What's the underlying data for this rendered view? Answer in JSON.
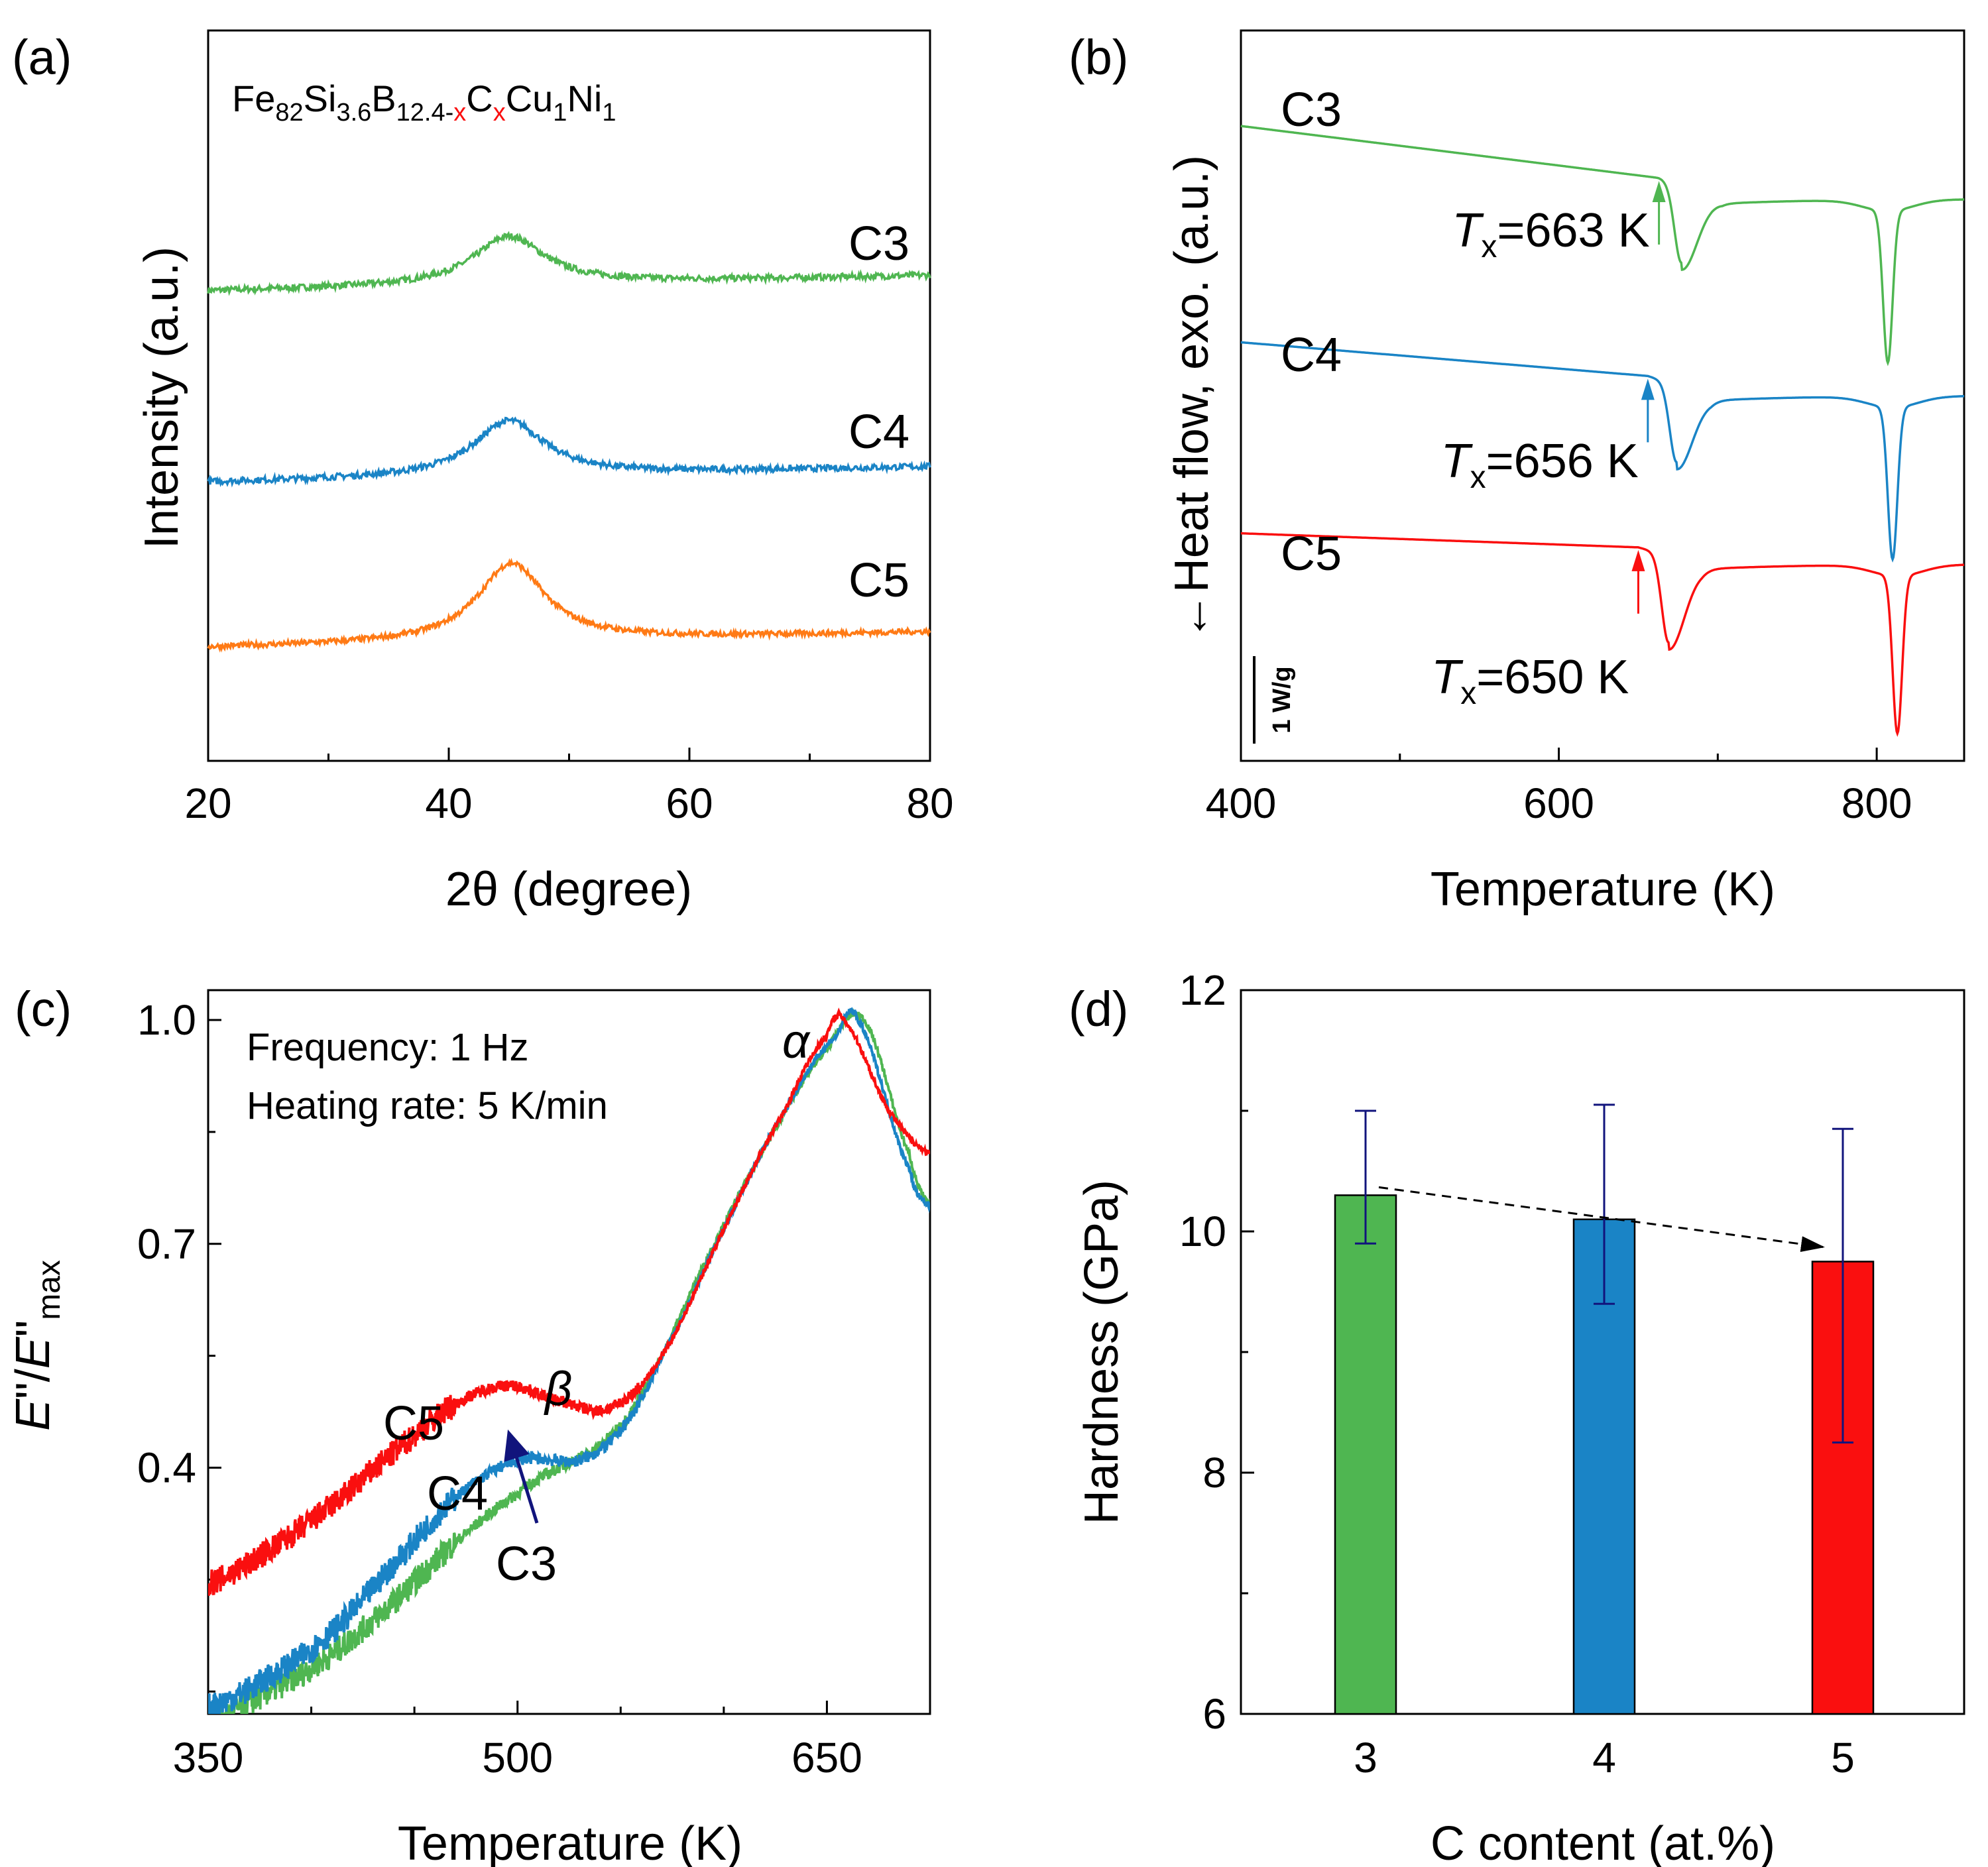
{
  "colors": {
    "C3": "#4fb651",
    "C4": "#1a84c6",
    "C5": "#fa0f0f",
    "orange": "#ff7a15",
    "navy": "#11147c",
    "black": "#000000"
  },
  "chart_data": [
    {
      "panel": "a",
      "panel_label": "(a)",
      "type": "line",
      "title_parts": {
        "fe": "Fe",
        "fe_sub": "82",
        "si": "Si",
        "si_sub": "3.6",
        "b": "B",
        "b_sub": "12.4-",
        "b_sub_x": "x",
        "c": "C",
        "c_sub": "x",
        "cu": "Cu",
        "cu_sub": "1",
        "ni": "Ni",
        "ni_sub": "1"
      },
      "xlabel": "2θ  (degree)",
      "ylabel": "Intensity (a.u.)",
      "xlim": [
        20,
        80
      ],
      "ylim": [
        0,
        4.2
      ],
      "xticks": [
        20,
        40,
        60,
        80
      ],
      "series": [
        {
          "name": "C3",
          "color_key": "C3",
          "offset": 2.7,
          "peak_height": 0.28,
          "peak_center": 45,
          "peak_width": 3.6,
          "baseline_slope": 0.0015,
          "noise": 0.018
        },
        {
          "name": "C4",
          "color_key": "C4",
          "offset": 1.6,
          "peak_height": 0.32,
          "peak_center": 45,
          "peak_width": 3.6,
          "baseline_slope": 0.0015,
          "noise": 0.018
        },
        {
          "name": "C5",
          "color_key": "orange",
          "offset": 0.65,
          "peak_height": 0.45,
          "peak_center": 45.2,
          "peak_width": 3.4,
          "baseline_slope": 0.0015,
          "noise": 0.016
        }
      ],
      "labels": [
        "C3",
        "C4",
        "C5"
      ]
    },
    {
      "panel": "b",
      "panel_label": "(b)",
      "type": "line",
      "xlabel": "Temperature (K)",
      "ylabel": "←Heat flow, exo. (a.u.)",
      "xlim": [
        400,
        855
      ],
      "ylim": [
        -0.6,
        4.6
      ],
      "xticks": [
        400,
        600,
        800
      ],
      "scale_bar_label": "1 W/g",
      "series": [
        {
          "name": "C3",
          "color_key": "C3",
          "start": 3.92,
          "pre_end": 3.55,
          "onset": 663,
          "peak1_T": 677,
          "peak1_depth": 0.55,
          "peak2_T": 807,
          "peak2_depth": 1.08,
          "end_level": 3.4
        },
        {
          "name": "C4",
          "color_key": "C4",
          "start": 2.38,
          "pre_end": 2.14,
          "onset": 656,
          "peak1_T": 674,
          "peak1_depth": 0.55,
          "peak2_T": 810,
          "peak2_depth": 1.08,
          "end_level": 2.0
        },
        {
          "name": "C5",
          "color_key": "C5",
          "start": 1.02,
          "pre_end": 0.92,
          "onset": 650,
          "peak1_T": 669,
          "peak1_depth": 0.62,
          "peak2_T": 813,
          "peak2_depth": 1.12,
          "end_level": 0.8
        }
      ],
      "annotations": [
        {
          "name": "C3",
          "prefix": "T",
          "sub": "x",
          "value": "=663 K",
          "color_key": "C3",
          "T": 663
        },
        {
          "name": "C4",
          "prefix": "T",
          "sub": "x",
          "value": "=656 K",
          "color_key": "C4",
          "T": 656
        },
        {
          "name": "C5",
          "prefix": "T",
          "sub": "x",
          "value": "=650 K",
          "color_key": "C5",
          "T": 650
        }
      ]
    },
    {
      "panel": "c",
      "panel_label": "(c)",
      "type": "line",
      "xlabel": "Temperature (K)",
      "ylabel_parts": {
        "e1": "E",
        "mid": "\"/",
        "e2": "E",
        "prime": "\"",
        "sub": "max"
      },
      "xlim": [
        350,
        700
      ],
      "ylim": [
        0.07,
        1.04
      ],
      "xticks": [
        350,
        500,
        650
      ],
      "yticks": [
        0.4,
        0.7,
        1.0
      ],
      "legend_lines": [
        "Frequency: 1 Hz",
        "Heating rate: 5 K/min"
      ],
      "alpha_label": "α",
      "beta_label": "β",
      "series": [
        {
          "name": "C3",
          "color_key": "C3",
          "points": [
            [
              350,
              0.06
            ],
            [
              380,
              0.1
            ],
            [
              410,
              0.15
            ],
            [
              440,
              0.22
            ],
            [
              470,
              0.3
            ],
            [
              500,
              0.365
            ],
            [
              520,
              0.4
            ],
            [
              540,
              0.43
            ],
            [
              560,
              0.5
            ],
            [
              590,
              0.67
            ],
            [
              620,
              0.83
            ],
            [
              650,
              0.96
            ],
            [
              668,
              1.0
            ],
            [
              690,
              0.82
            ],
            [
              700,
              0.75
            ]
          ]
        },
        {
          "name": "C4",
          "color_key": "C4",
          "points": [
            [
              350,
              0.08
            ],
            [
              380,
              0.12
            ],
            [
              410,
              0.18
            ],
            [
              440,
              0.27
            ],
            [
              470,
              0.36
            ],
            [
              500,
              0.41
            ],
            [
              530,
              0.41
            ],
            [
              550,
              0.45
            ],
            [
              570,
              0.55
            ],
            [
              600,
              0.72
            ],
            [
              630,
              0.88
            ],
            [
              655,
              0.98
            ],
            [
              665,
              1.0
            ],
            [
              690,
              0.8
            ],
            [
              700,
              0.75
            ]
          ]
        },
        {
          "name": "C5",
          "color_key": "C5",
          "points": [
            [
              350,
              0.245
            ],
            [
              380,
              0.29
            ],
            [
              410,
              0.35
            ],
            [
              440,
              0.42
            ],
            [
              470,
              0.485
            ],
            [
              495,
              0.51
            ],
            [
              520,
              0.49
            ],
            [
              545,
              0.48
            ],
            [
              570,
              0.55
            ],
            [
              600,
              0.72
            ],
            [
              630,
              0.88
            ],
            [
              650,
              0.98
            ],
            [
              658,
              1.0
            ],
            [
              680,
              0.88
            ],
            [
              700,
              0.82
            ]
          ]
        }
      ],
      "labels": [
        "C5",
        "C4",
        "C3"
      ]
    },
    {
      "panel": "d",
      "panel_label": "(d)",
      "type": "bar",
      "xlabel": "C content (at.%)",
      "ylabel": "Hardness (GPa)",
      "categories": [
        "3",
        "4",
        "5"
      ],
      "values": [
        10.3,
        10.1,
        9.75
      ],
      "errors": [
        [
          9.9,
          11.0
        ],
        [
          9.4,
          11.05
        ],
        [
          8.25,
          10.85
        ]
      ],
      "bar_color_keys": [
        "C3",
        "C4",
        "C5"
      ],
      "ylim": [
        6,
        12
      ],
      "yticks": [
        6,
        8,
        10,
        12
      ]
    }
  ]
}
